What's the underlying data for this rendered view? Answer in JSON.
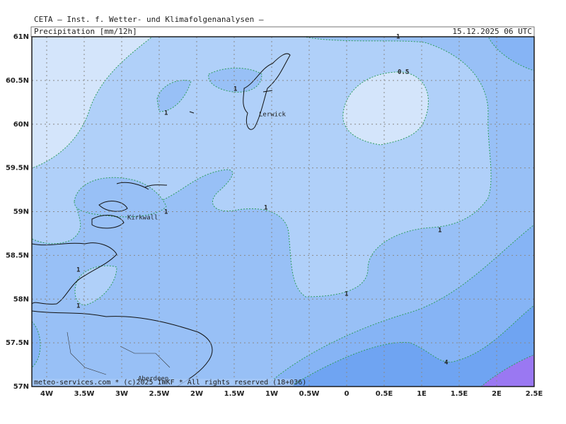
{
  "header": {
    "institute": "CETA — Inst. f. Wetter- und Klimafolgenanalysen —",
    "parameter": "Precipitation [mm/12h]",
    "valid_time": "15.12.2025 06 UTC"
  },
  "axes": {
    "x_ticks": [
      {
        "value": -4,
        "label": "4W"
      },
      {
        "value": -3.5,
        "label": "3.5W"
      },
      {
        "value": -3,
        "label": "3W"
      },
      {
        "value": -2.5,
        "label": "2.5W"
      },
      {
        "value": -2,
        "label": "2W"
      },
      {
        "value": -1.5,
        "label": "1.5W"
      },
      {
        "value": -1,
        "label": "1W"
      },
      {
        "value": -0.5,
        "label": "0.5W"
      },
      0,
      {
        "value": 0.5,
        "label": "0.5E"
      },
      {
        "value": 1,
        "label": "1E"
      },
      {
        "value": 1.5,
        "label": "1.5E"
      },
      {
        "value": 2,
        "label": "2E"
      },
      {
        "value": 2.5,
        "label": "2.5E"
      }
    ],
    "y_ticks": [
      {
        "value": 61,
        "label": "61N"
      },
      {
        "value": 60.5,
        "label": "60.5N"
      },
      {
        "value": 60,
        "label": "60N"
      },
      {
        "value": 59.5,
        "label": "59.5N"
      },
      {
        "value": 59,
        "label": "59N"
      },
      {
        "value": 58.5,
        "label": "58.5N"
      },
      {
        "value": 58,
        "label": "58N"
      },
      {
        "value": 57.5,
        "label": "57.5N"
      },
      {
        "value": 57,
        "label": "57N"
      }
    ]
  },
  "contour_labels": [
    1,
    0.5,
    1,
    1,
    1,
    1,
    1,
    1,
    1,
    1,
    4
  ],
  "places": [
    "Lerwick",
    "Kirkwall",
    "Aberdeen"
  ],
  "footer": "meteo-services.com * (c)2025 IWKF * All rights reserved (18+036)"
}
